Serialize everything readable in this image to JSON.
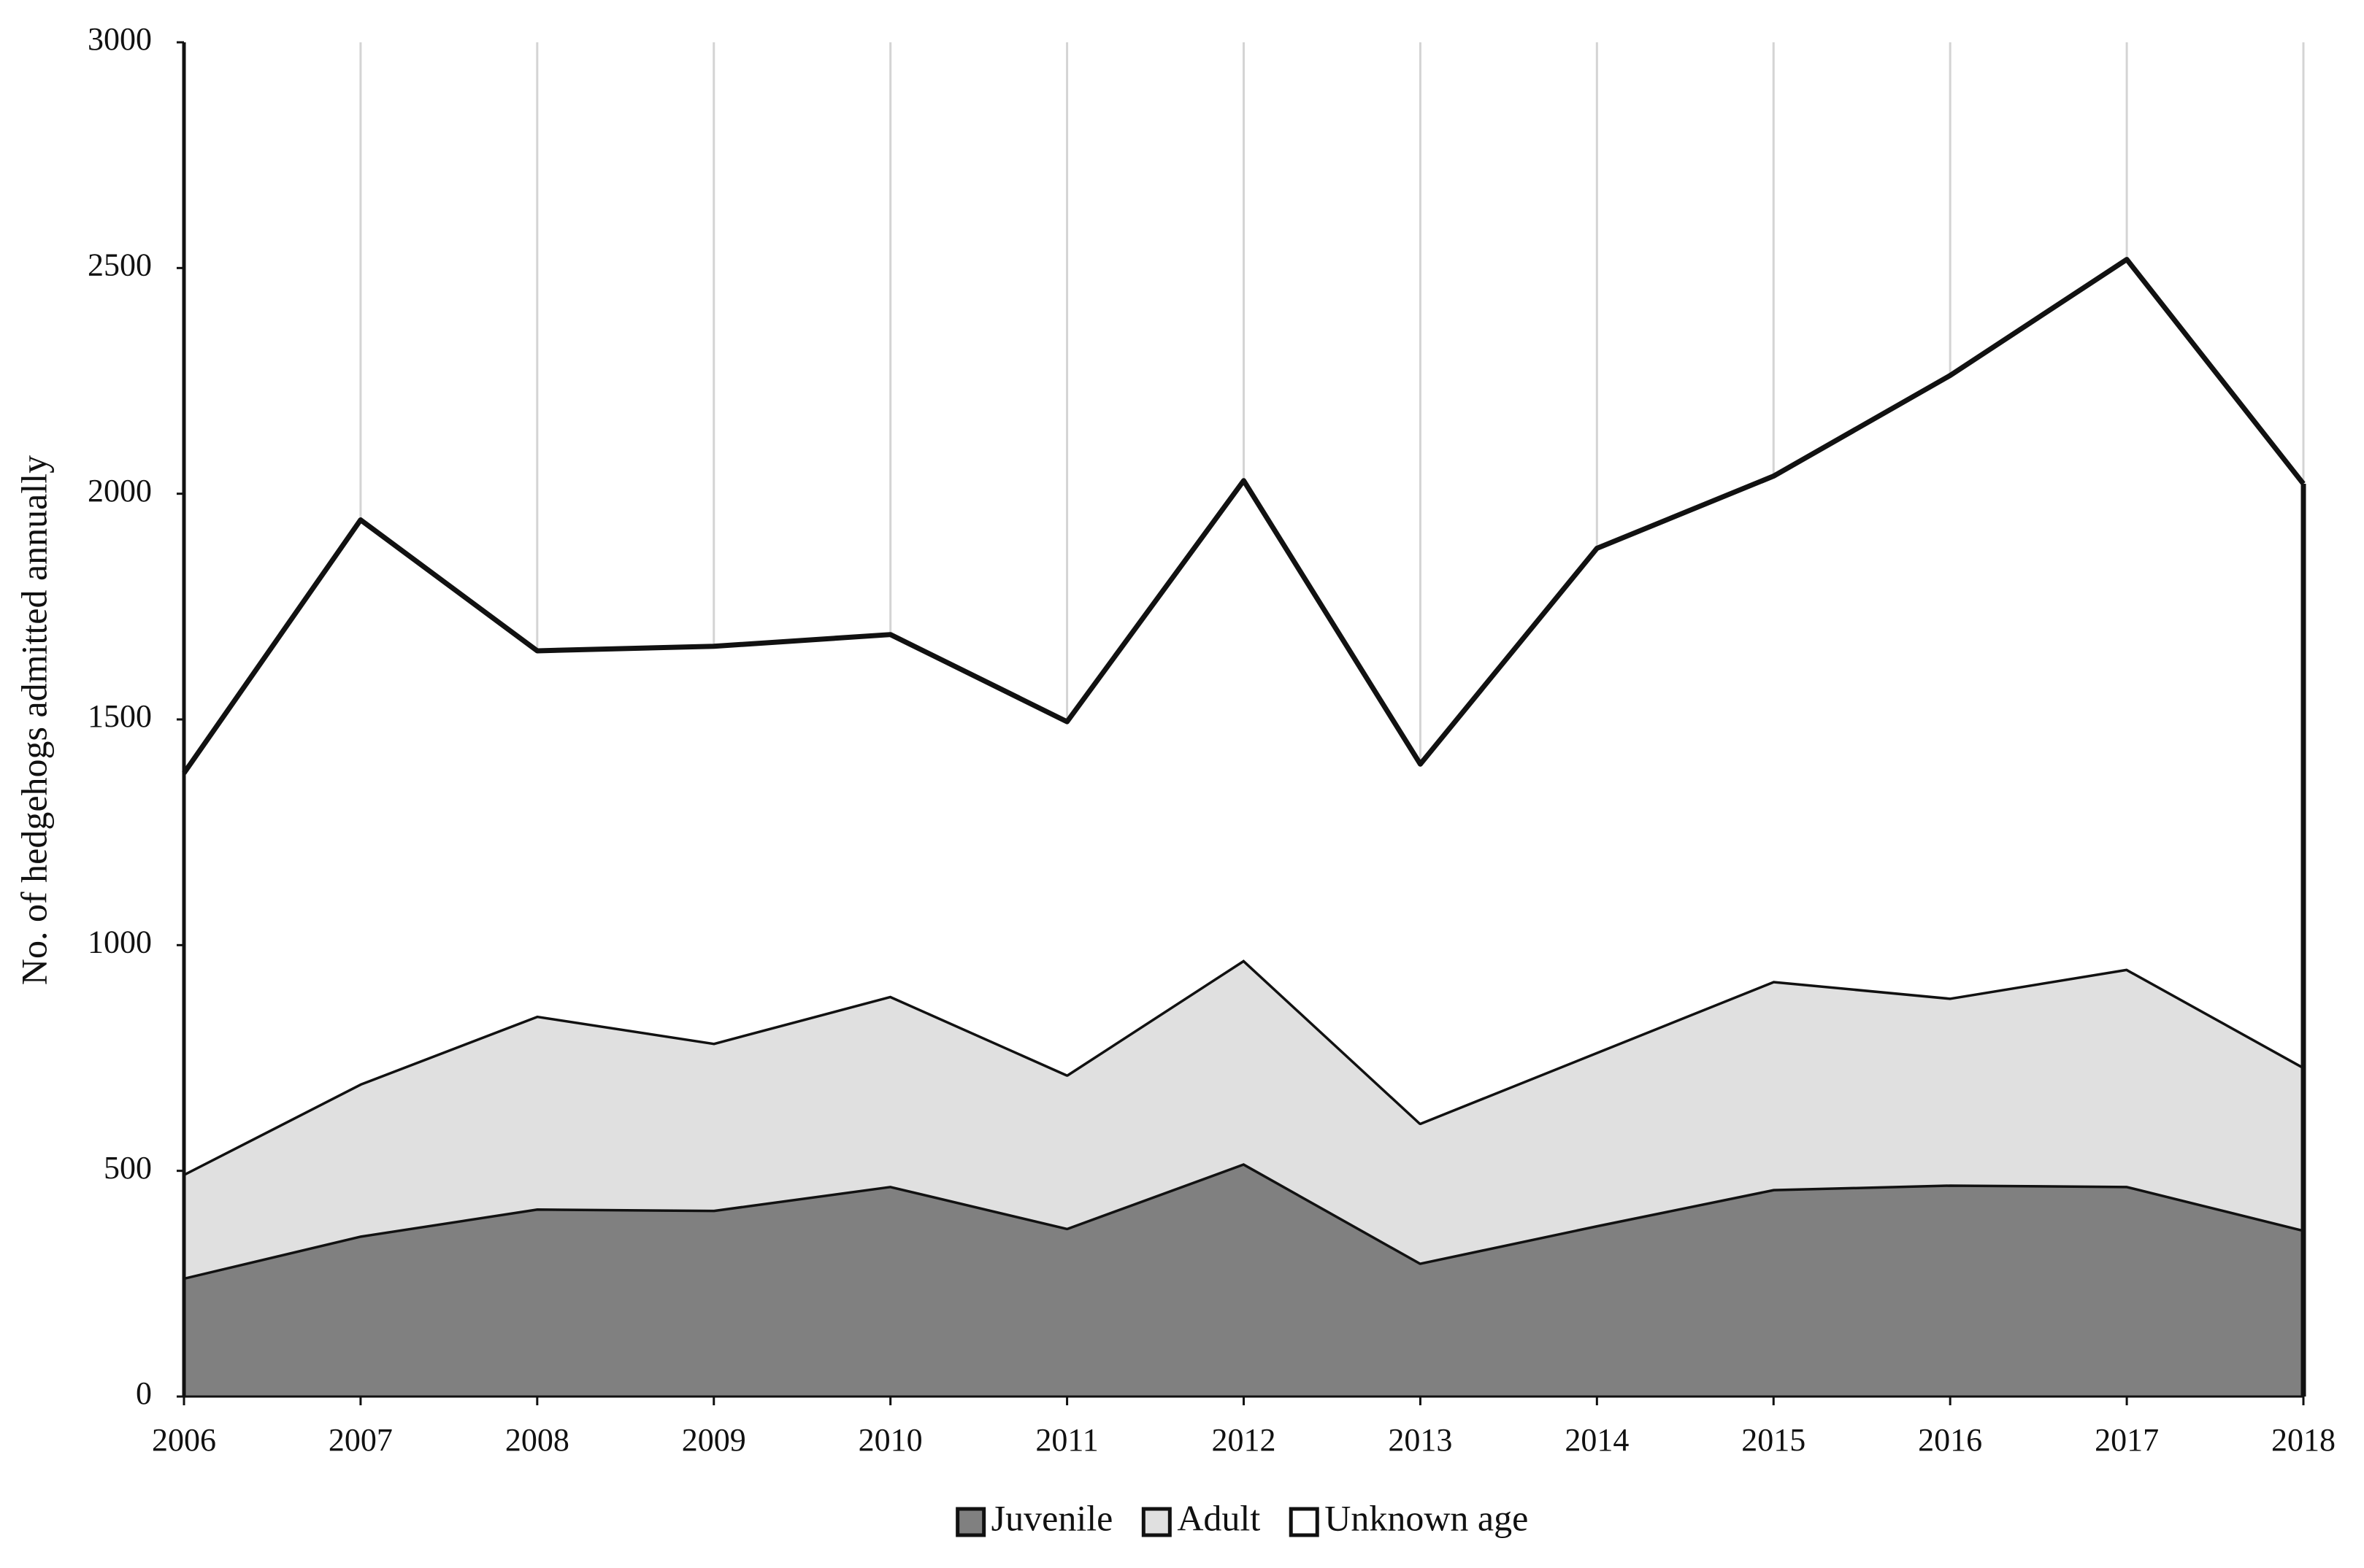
{
  "chart_data": {
    "type": "stacked_area",
    "y_label": "No. of hedgehogs admitted annually",
    "categories": [
      "2006",
      "2007",
      "2008",
      "2009",
      "2010",
      "2011",
      "2012",
      "2013",
      "2014",
      "2015",
      "2016",
      "2017",
      "2018"
    ],
    "series": [
      {
        "name": "Juvenile",
        "color": "#808080",
        "values": [
          264,
          357,
          417,
          414,
          467,
          374,
          517,
          297,
          380,
          460,
          470,
          467,
          370
        ]
      },
      {
        "name": "Adult",
        "color": "#e0e0e0",
        "values": [
          230,
          337,
          427,
          370,
          421,
          340,
          451,
          310,
          384,
          461,
          414,
          481,
          361
        ]
      },
      {
        "name": "Unknown age",
        "color": "#ffffff",
        "values": [
          887,
          1248,
          808,
          878,
          800,
          781,
          1061,
          794,
          1115,
          1118,
          1378,
          1571,
          1291
        ]
      }
    ],
    "ylim": [
      0,
      3000
    ],
    "yticks": [
      0,
      500,
      1000,
      1500,
      2000,
      2500,
      3000
    ],
    "grid": true,
    "legend": "bottom"
  }
}
